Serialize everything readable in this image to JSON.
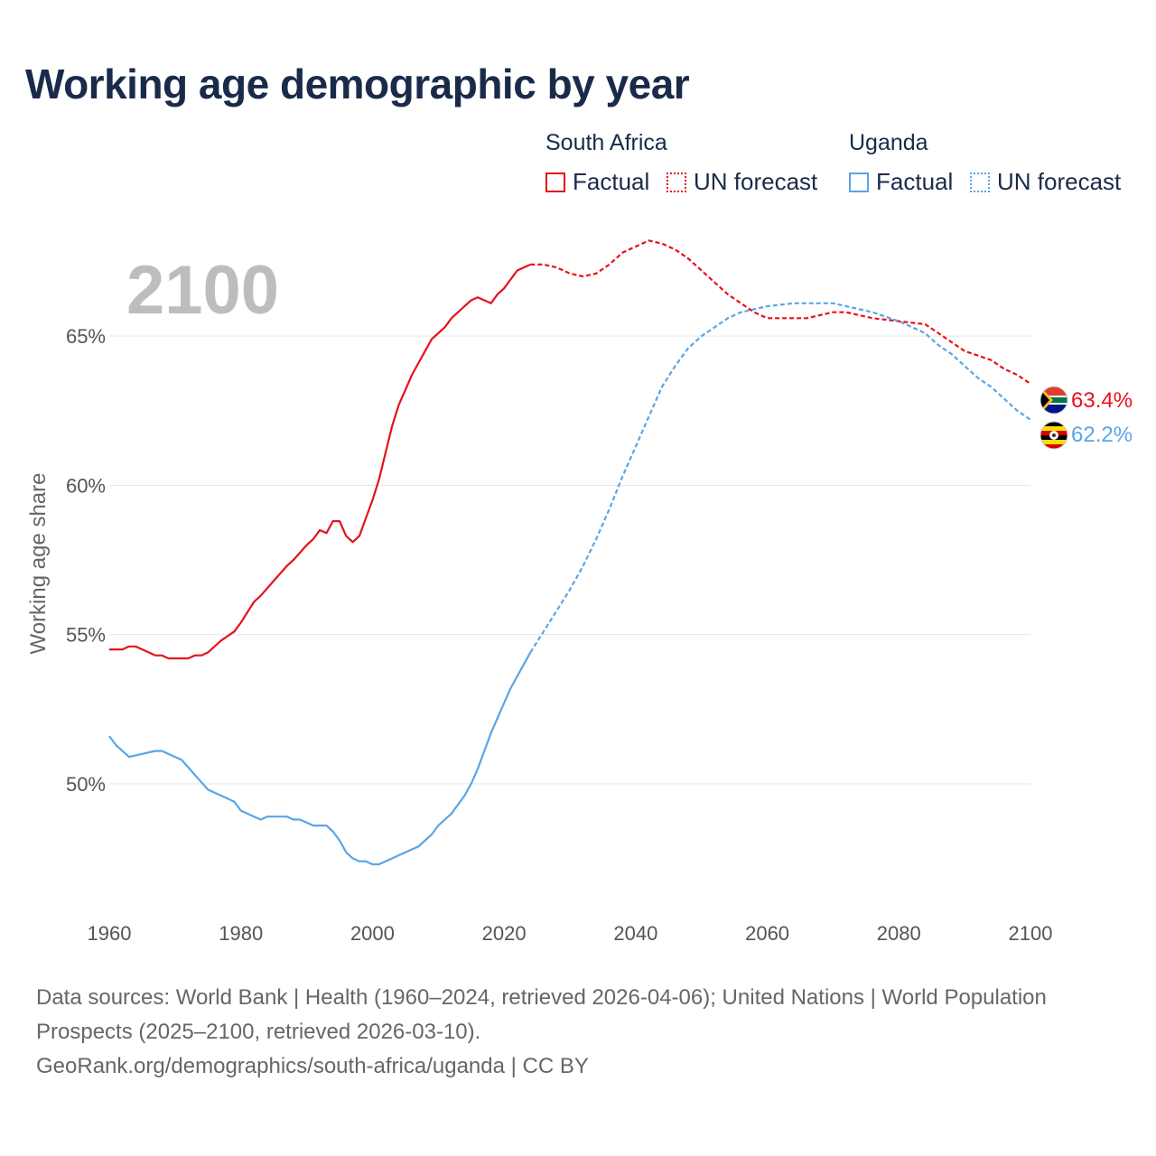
{
  "title": "Working age demographic by year",
  "current_year": "2100",
  "legend": {
    "south_africa": {
      "label": "South Africa",
      "factual": "Factual",
      "forecast": "UN forecast"
    },
    "uganda": {
      "label": "Uganda",
      "factual": "Factual",
      "forecast": "UN forecast"
    }
  },
  "footer": {
    "line1": "Data sources: World Bank | Health (1960–2024, retrieved 2026-04-06); United Nations | World Population Prospects (2025–2100, retrieved 2026-03-10).",
    "line2": "GeoRank.org/demographics/south-africa/uganda | CC BY"
  },
  "colors": {
    "south_africa": "#e8101a",
    "uganda": "#5aa5e6"
  },
  "chart_data": {
    "type": "line",
    "title": "Working age demographic by year",
    "xlabel": "",
    "ylabel": "Working age share",
    "xlim": [
      1960,
      2100
    ],
    "ylim": [
      46.0,
      69.0
    ],
    "x_ticks": [
      1960,
      1980,
      2000,
      2020,
      2040,
      2060,
      2080,
      2100
    ],
    "y_ticks": [
      50,
      55,
      60,
      65
    ],
    "y_tick_labels": [
      "50%",
      "55%",
      "60%",
      "65%"
    ],
    "grid": true,
    "legend_position": "top-right",
    "factual_end_year": 2024,
    "series": [
      {
        "name": "South Africa",
        "end_label": "63.4%",
        "points": [
          [
            1960,
            54.5
          ],
          [
            1962,
            54.5
          ],
          [
            1963,
            54.6
          ],
          [
            1964,
            54.6
          ],
          [
            1966,
            54.4
          ],
          [
            1967,
            54.3
          ],
          [
            1968,
            54.3
          ],
          [
            1969,
            54.2
          ],
          [
            1972,
            54.2
          ],
          [
            1973,
            54.3
          ],
          [
            1974,
            54.3
          ],
          [
            1975,
            54.4
          ],
          [
            1977,
            54.8
          ],
          [
            1979,
            55.1
          ],
          [
            1980,
            55.4
          ],
          [
            1982,
            56.1
          ],
          [
            1983,
            56.3
          ],
          [
            1985,
            56.8
          ],
          [
            1987,
            57.3
          ],
          [
            1988,
            57.5
          ],
          [
            1990,
            58.0
          ],
          [
            1991,
            58.2
          ],
          [
            1992,
            58.5
          ],
          [
            1993,
            58.4
          ],
          [
            1994,
            58.8
          ],
          [
            1995,
            58.8
          ],
          [
            1996,
            58.3
          ],
          [
            1997,
            58.1
          ],
          [
            1998,
            58.3
          ],
          [
            1999,
            58.9
          ],
          [
            2000,
            59.5
          ],
          [
            2001,
            60.2
          ],
          [
            2002,
            61.1
          ],
          [
            2003,
            62.0
          ],
          [
            2004,
            62.7
          ],
          [
            2005,
            63.2
          ],
          [
            2006,
            63.7
          ],
          [
            2007,
            64.1
          ],
          [
            2008,
            64.5
          ],
          [
            2009,
            64.9
          ],
          [
            2011,
            65.3
          ],
          [
            2012,
            65.6
          ],
          [
            2014,
            66.0
          ],
          [
            2015,
            66.2
          ],
          [
            2016,
            66.3
          ],
          [
            2018,
            66.1
          ],
          [
            2019,
            66.4
          ],
          [
            2020,
            66.6
          ],
          [
            2022,
            67.2
          ],
          [
            2024,
            67.4
          ],
          [
            2026,
            67.4
          ],
          [
            2028,
            67.3
          ],
          [
            2030,
            67.1
          ],
          [
            2032,
            67.0
          ],
          [
            2034,
            67.1
          ],
          [
            2036,
            67.4
          ],
          [
            2038,
            67.8
          ],
          [
            2040,
            68.0
          ],
          [
            2042,
            68.2
          ],
          [
            2044,
            68.1
          ],
          [
            2046,
            67.9
          ],
          [
            2048,
            67.6
          ],
          [
            2050,
            67.2
          ],
          [
            2052,
            66.8
          ],
          [
            2054,
            66.4
          ],
          [
            2056,
            66.1
          ],
          [
            2058,
            65.8
          ],
          [
            2060,
            65.6
          ],
          [
            2062,
            65.6
          ],
          [
            2066,
            65.6
          ],
          [
            2068,
            65.7
          ],
          [
            2070,
            65.8
          ],
          [
            2072,
            65.8
          ],
          [
            2074,
            65.7
          ],
          [
            2076,
            65.6
          ],
          [
            2080,
            65.5
          ],
          [
            2084,
            65.4
          ],
          [
            2086,
            65.1
          ],
          [
            2088,
            64.8
          ],
          [
            2090,
            64.5
          ],
          [
            2094,
            64.2
          ],
          [
            2096,
            63.9
          ],
          [
            2098,
            63.7
          ],
          [
            2100,
            63.4
          ]
        ]
      },
      {
        "name": "Uganda",
        "end_label": "62.2%",
        "points": [
          [
            1960,
            51.6
          ],
          [
            1961,
            51.3
          ],
          [
            1963,
            50.9
          ],
          [
            1965,
            51.0
          ],
          [
            1967,
            51.1
          ],
          [
            1968,
            51.1
          ],
          [
            1970,
            50.9
          ],
          [
            1971,
            50.8
          ],
          [
            1973,
            50.3
          ],
          [
            1975,
            49.8
          ],
          [
            1977,
            49.6
          ],
          [
            1979,
            49.4
          ],
          [
            1980,
            49.1
          ],
          [
            1982,
            48.9
          ],
          [
            1983,
            48.8
          ],
          [
            1984,
            48.9
          ],
          [
            1987,
            48.9
          ],
          [
            1988,
            48.8
          ],
          [
            1989,
            48.8
          ],
          [
            1991,
            48.6
          ],
          [
            1993,
            48.6
          ],
          [
            1994,
            48.4
          ],
          [
            1995,
            48.1
          ],
          [
            1996,
            47.7
          ],
          [
            1997,
            47.5
          ],
          [
            1998,
            47.4
          ],
          [
            1999,
            47.4
          ],
          [
            2000,
            47.3
          ],
          [
            2001,
            47.3
          ],
          [
            2003,
            47.5
          ],
          [
            2005,
            47.7
          ],
          [
            2007,
            47.9
          ],
          [
            2009,
            48.3
          ],
          [
            2010,
            48.6
          ],
          [
            2012,
            49.0
          ],
          [
            2014,
            49.6
          ],
          [
            2015,
            50.0
          ],
          [
            2016,
            50.5
          ],
          [
            2017,
            51.1
          ],
          [
            2018,
            51.7
          ],
          [
            2019,
            52.2
          ],
          [
            2020,
            52.7
          ],
          [
            2021,
            53.2
          ],
          [
            2022,
            53.6
          ],
          [
            2023,
            54.0
          ],
          [
            2024,
            54.4
          ],
          [
            2026,
            55.1
          ],
          [
            2028,
            55.8
          ],
          [
            2030,
            56.5
          ],
          [
            2032,
            57.3
          ],
          [
            2034,
            58.2
          ],
          [
            2036,
            59.2
          ],
          [
            2038,
            60.3
          ],
          [
            2040,
            61.3
          ],
          [
            2042,
            62.3
          ],
          [
            2044,
            63.3
          ],
          [
            2046,
            64.0
          ],
          [
            2048,
            64.6
          ],
          [
            2050,
            65.0
          ],
          [
            2052,
            65.3
          ],
          [
            2054,
            65.6
          ],
          [
            2056,
            65.8
          ],
          [
            2058,
            65.9
          ],
          [
            2060,
            66.0
          ],
          [
            2064,
            66.1
          ],
          [
            2070,
            66.1
          ],
          [
            2072,
            66.0
          ],
          [
            2076,
            65.8
          ],
          [
            2080,
            65.5
          ],
          [
            2082,
            65.3
          ],
          [
            2084,
            65.1
          ],
          [
            2086,
            64.7
          ],
          [
            2088,
            64.4
          ],
          [
            2090,
            64.0
          ],
          [
            2092,
            63.6
          ],
          [
            2094,
            63.3
          ],
          [
            2096,
            62.9
          ],
          [
            2098,
            62.5
          ],
          [
            2100,
            62.2
          ]
        ]
      }
    ]
  }
}
